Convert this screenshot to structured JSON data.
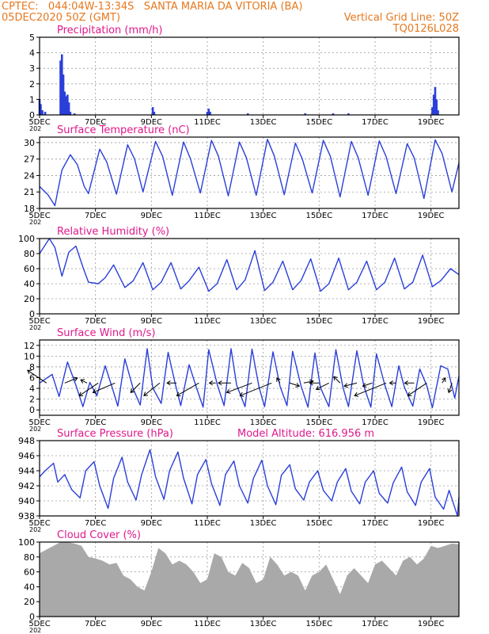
{
  "header": {
    "line1_left": "CPTEC:   044:04W-13:34S   SANTA MARIA DA VITORIA (BA)",
    "line2_left": "05DEC2020 50Z (GMT)",
    "line2_right": "Vertical Grid Line: 50Z",
    "line3_right": "TQ0126L028"
  },
  "colors": {
    "header": "#e6781e",
    "title": "#e0198c",
    "series": "#2a3fd9",
    "cloud": "#a9a9a9",
    "grid": "#9a9a9a"
  },
  "x_axis": {
    "tick_labels": [
      "5DEC",
      "7DEC",
      "9DEC",
      "11DEC",
      "13DEC",
      "15DEC",
      "17DEC",
      "19DEC"
    ],
    "tick_days": [
      0,
      2,
      4,
      6,
      8,
      10,
      12,
      14
    ],
    "xlim_days": [
      0,
      15
    ],
    "year_fragment": "202"
  },
  "chart_data": [
    {
      "id": "precip",
      "type": "bar",
      "title": "Precipitation (mm/h)",
      "ylim": [
        0,
        5
      ],
      "yticks": [
        0,
        1,
        2,
        3,
        4,
        5
      ],
      "x_days": [
        0.0,
        0.04,
        0.1,
        0.2,
        0.75,
        0.8,
        0.85,
        0.9,
        0.95,
        1.0,
        1.05,
        1.1,
        1.25,
        4.05,
        4.1,
        6.0,
        6.05,
        6.1,
        7.45,
        9.5,
        10.5,
        11.05,
        14.05,
        14.1,
        14.15,
        14.2,
        14.25
      ],
      "values": [
        1.0,
        0.7,
        0.3,
        0.2,
        3.5,
        3.9,
        2.6,
        1.5,
        1.2,
        1.3,
        0.8,
        0.2,
        0.1,
        0.5,
        0.2,
        0.2,
        0.4,
        0.2,
        0.1,
        0.1,
        0.1,
        0.1,
        0.5,
        1.3,
        1.8,
        1.0,
        0.3
      ]
    },
    {
      "id": "temp",
      "type": "line",
      "title": "Surface Temperature (nC)",
      "ylim": [
        18,
        31
      ],
      "yticks": [
        18,
        21,
        24,
        27,
        30
      ],
      "x_days": [
        0,
        0.3,
        0.55,
        0.8,
        1.1,
        1.35,
        1.6,
        1.75,
        2.15,
        2.4,
        2.75,
        3.15,
        3.4,
        3.7,
        4.15,
        4.4,
        4.75,
        5.15,
        5.4,
        5.75,
        6.15,
        6.4,
        6.75,
        7.15,
        7.4,
        7.75,
        8.15,
        8.4,
        8.75,
        9.15,
        9.4,
        9.75,
        10.15,
        10.4,
        10.75,
        11.15,
        11.4,
        11.75,
        12.15,
        12.4,
        12.75,
        13.15,
        13.4,
        13.75,
        14.15,
        14.4,
        14.75,
        15
      ],
      "values": [
        22,
        20.5,
        18.5,
        25,
        27.8,
        26,
        22,
        20.7,
        28.8,
        26.5,
        20.6,
        29.6,
        27,
        21,
        30.2,
        27.5,
        20.4,
        30.1,
        27,
        20.8,
        30.4,
        27.5,
        20.3,
        30.1,
        27.2,
        20.4,
        30.6,
        27.5,
        20.5,
        29.9,
        27,
        20.8,
        30.4,
        27.5,
        20.1,
        30.2,
        27.2,
        20.4,
        30.3,
        27.4,
        20.7,
        29.8,
        27.2,
        19.8,
        30.5,
        28,
        21,
        26.3
      ]
    },
    {
      "id": "rh",
      "type": "line",
      "title": "Relative Humidity (%)",
      "ylim": [
        0,
        100
      ],
      "yticks": [
        0,
        20,
        40,
        60,
        80,
        100
      ],
      "x_days": [
        0,
        0.35,
        0.55,
        0.8,
        1.05,
        1.3,
        1.55,
        1.75,
        2.1,
        2.35,
        2.65,
        3.05,
        3.35,
        3.7,
        4.05,
        4.35,
        4.7,
        5.05,
        5.35,
        5.7,
        6.05,
        6.35,
        6.7,
        7.05,
        7.35,
        7.7,
        8.05,
        8.35,
        8.7,
        9.05,
        9.35,
        9.7,
        10.05,
        10.35,
        10.7,
        11.05,
        11.35,
        11.7,
        12.05,
        12.35,
        12.7,
        13.05,
        13.35,
        13.7,
        14.05,
        14.35,
        14.7,
        15
      ],
      "values": [
        80,
        100,
        88,
        50,
        82,
        90,
        62,
        42,
        40,
        48,
        65,
        35,
        44,
        68,
        32,
        42,
        68,
        33,
        44,
        62,
        30,
        40,
        72,
        32,
        45,
        84,
        31,
        42,
        70,
        32,
        44,
        73,
        30,
        40,
        74,
        32,
        42,
        70,
        32,
        42,
        74,
        33,
        42,
        78,
        36,
        44,
        60,
        52
      ]
    },
    {
      "id": "wind",
      "type": "line",
      "title": "Surface Wind (m/s)",
      "ylim": [
        -1,
        13
      ],
      "yticks": [
        0,
        2,
        4,
        6,
        8,
        10,
        12
      ],
      "x_days": [
        0,
        0.45,
        0.7,
        1.0,
        1.3,
        1.55,
        1.8,
        2.05,
        2.35,
        2.6,
        2.8,
        3.05,
        3.35,
        3.6,
        3.85,
        4.05,
        4.35,
        4.6,
        4.85,
        5.05,
        5.35,
        5.6,
        5.85,
        6.05,
        6.35,
        6.6,
        6.85,
        7.05,
        7.35,
        7.6,
        7.85,
        8.05,
        8.35,
        8.6,
        8.85,
        9.05,
        9.35,
        9.6,
        9.85,
        10.05,
        10.35,
        10.6,
        10.85,
        11.05,
        11.35,
        11.6,
        11.85,
        12.05,
        12.35,
        12.6,
        12.85,
        13.05,
        13.35,
        13.6,
        13.85,
        14.05,
        14.35,
        14.6,
        14.85,
        15
      ],
      "values": [
        5,
        6.6,
        2.5,
        8.9,
        4.6,
        0.6,
        5.1,
        2.6,
        8.2,
        4.1,
        0.7,
        9.5,
        3.9,
        0.9,
        11.4,
        4.1,
        1.2,
        10.7,
        4.9,
        0.8,
        8.4,
        4.3,
        0.5,
        11.2,
        4.8,
        0.8,
        11.4,
        4.6,
        0.6,
        11.3,
        4.2,
        0.6,
        10.8,
        4.4,
        0.8,
        10.9,
        4.5,
        0.5,
        10.6,
        4.1,
        0.6,
        11.2,
        4.2,
        0.6,
        11.0,
        4.4,
        0.5,
        10.4,
        4.6,
        0.6,
        8.2,
        4.2,
        0.7,
        7.6,
        4.5,
        0.4,
        8.2,
        7.6,
        2.2,
        6.3
      ],
      "vectors": [
        {
          "x": 0.25,
          "u": -3,
          "v": 2
        },
        {
          "x": 0.9,
          "u": 2,
          "v": 0.8
        },
        {
          "x": 1.7,
          "u": -1,
          "v": 0.5
        },
        {
          "x": 2.1,
          "u": -3,
          "v": -2
        },
        {
          "x": 2.7,
          "u": -3.5,
          "v": -1.5
        },
        {
          "x": 3.6,
          "u": -1.5,
          "v": -1.5
        },
        {
          "x": 4.3,
          "u": -2.5,
          "v": -2
        },
        {
          "x": 4.9,
          "u": -1.5,
          "v": 0
        },
        {
          "x": 5.7,
          "u": -3.5,
          "v": -2
        },
        {
          "x": 6.3,
          "u": -1,
          "v": 0
        },
        {
          "x": 6.85,
          "u": -2,
          "v": 0
        },
        {
          "x": 7.6,
          "u": -4,
          "v": -1.5
        },
        {
          "x": 8.3,
          "u": -5,
          "v": -2
        },
        {
          "x": 8.6,
          "u": -0.5,
          "v": 0.8
        },
        {
          "x": 8.95,
          "u": 1.5,
          "v": -0.5
        },
        {
          "x": 9.45,
          "u": 1.5,
          "v": 0.3
        },
        {
          "x": 10.0,
          "u": -1.5,
          "v": 0
        },
        {
          "x": 10.35,
          "u": -2,
          "v": -1
        },
        {
          "x": 10.75,
          "u": -1,
          "v": 1
        },
        {
          "x": 11.35,
          "u": -2,
          "v": -0.5
        },
        {
          "x": 11.9,
          "u": -1.5,
          "v": -0.5
        },
        {
          "x": 12.4,
          "u": -5,
          "v": -2
        },
        {
          "x": 12.75,
          "u": -1,
          "v": 0
        },
        {
          "x": 13.4,
          "u": -1.5,
          "v": 0
        },
        {
          "x": 13.85,
          "u": -3,
          "v": -2
        },
        {
          "x": 14.4,
          "u": 0.5,
          "v": 0.8
        },
        {
          "x": 14.75,
          "u": -0.5,
          "v": -1.5
        }
      ]
    },
    {
      "id": "pressure",
      "type": "line",
      "title": "Surface Pressure (hPa)",
      "annotation": "Model Altitude: 616.956 m",
      "ylim": [
        938,
        948
      ],
      "yticks": [
        938,
        940,
        942,
        944,
        946,
        948
      ],
      "x_days": [
        0,
        0.2,
        0.5,
        0.65,
        0.9,
        1.15,
        1.45,
        1.65,
        1.95,
        2.15,
        2.45,
        2.65,
        2.95,
        3.15,
        3.45,
        3.65,
        3.95,
        4.15,
        4.45,
        4.65,
        4.95,
        5.15,
        5.45,
        5.65,
        5.95,
        6.15,
        6.45,
        6.65,
        6.95,
        7.15,
        7.45,
        7.65,
        7.95,
        8.15,
        8.45,
        8.65,
        8.95,
        9.15,
        9.45,
        9.65,
        9.95,
        10.15,
        10.45,
        10.65,
        10.95,
        11.15,
        11.45,
        11.65,
        11.95,
        12.15,
        12.45,
        12.65,
        12.95,
        13.15,
        13.45,
        13.65,
        13.95,
        14.15,
        14.45,
        14.65,
        14.95,
        15
      ],
      "values": [
        943.2,
        944,
        945,
        942.5,
        943.5,
        941.5,
        940.4,
        944,
        945.2,
        942,
        939,
        943,
        945.8,
        942.5,
        940.1,
        943.5,
        946.8,
        943.2,
        940.2,
        944,
        946.5,
        943,
        939.6,
        943.5,
        945.5,
        942.3,
        939.4,
        943.5,
        945.3,
        942,
        939.7,
        943,
        945.4,
        942,
        939.5,
        943.4,
        944.8,
        941.6,
        940.1,
        942.5,
        944,
        941.4,
        940,
        942.5,
        944.3,
        941.3,
        939.6,
        942.5,
        944,
        941,
        939.7,
        942.4,
        944.5,
        941.2,
        939.4,
        942.5,
        944.3,
        940.5,
        938.9,
        941.4,
        938,
        940.5
      ]
    },
    {
      "id": "cloud",
      "type": "area",
      "title": "Cloud Cover (%)",
      "ylim": [
        0,
        100
      ],
      "yticks": [
        0,
        20,
        40,
        60,
        80,
        100
      ],
      "x_days": [
        0,
        0.25,
        0.5,
        0.75,
        1.0,
        1.25,
        1.5,
        1.75,
        2.0,
        2.25,
        2.5,
        2.75,
        3.0,
        3.25,
        3.5,
        3.75,
        4.0,
        4.25,
        4.5,
        4.75,
        5.0,
        5.25,
        5.5,
        5.75,
        6.0,
        6.25,
        6.5,
        6.75,
        7.0,
        7.25,
        7.5,
        7.75,
        8.0,
        8.25,
        8.5,
        8.75,
        9.0,
        9.25,
        9.5,
        9.75,
        10.0,
        10.25,
        10.5,
        10.75,
        11.0,
        11.25,
        11.5,
        11.75,
        12.0,
        12.25,
        12.5,
        12.75,
        13.0,
        13.25,
        13.5,
        13.75,
        14.0,
        14.25,
        14.5,
        14.75,
        15
      ],
      "values": [
        85,
        90,
        95,
        100,
        100,
        98,
        95,
        80,
        78,
        75,
        70,
        72,
        55,
        50,
        40,
        35,
        60,
        92,
        85,
        70,
        75,
        70,
        60,
        45,
        50,
        85,
        80,
        60,
        55,
        72,
        65,
        45,
        50,
        80,
        70,
        55,
        60,
        55,
        35,
        55,
        60,
        70,
        50,
        30,
        55,
        65,
        55,
        45,
        70,
        75,
        65,
        55,
        75,
        80,
        70,
        78,
        95,
        92,
        95,
        98,
        97
      ]
    }
  ]
}
